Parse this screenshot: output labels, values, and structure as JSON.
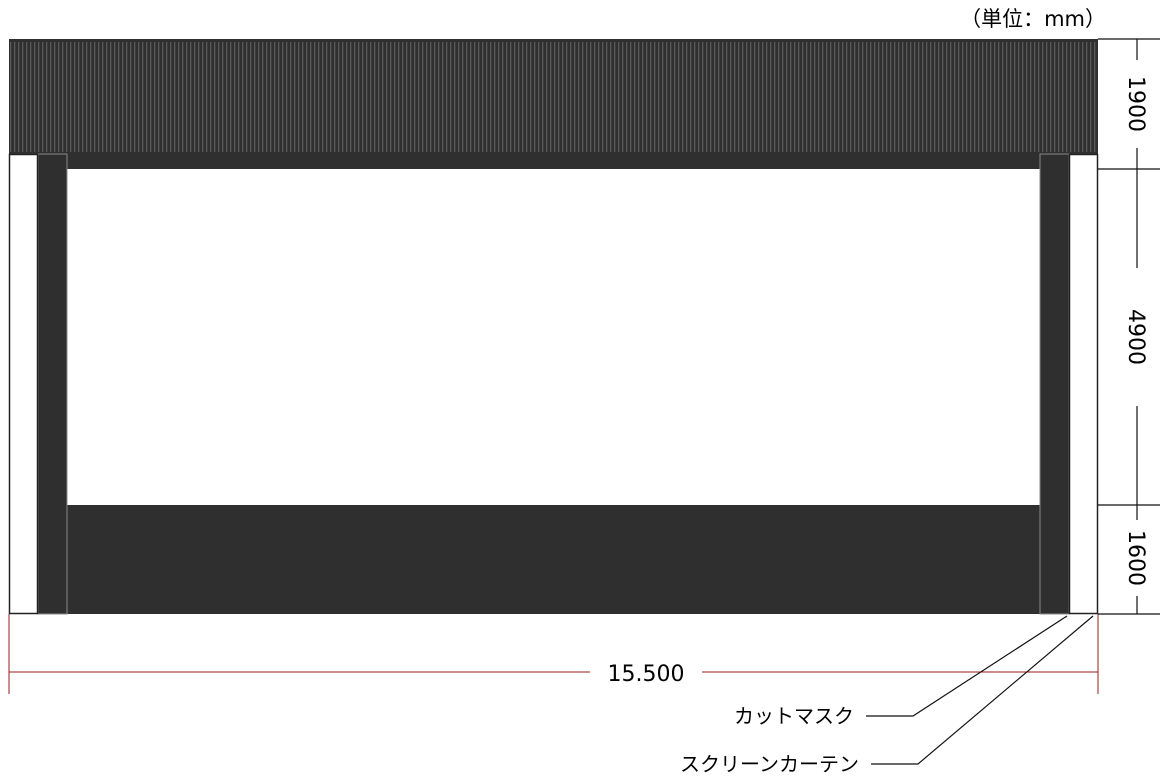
{
  "unit_label": "（単位：mm）",
  "dimensions": {
    "width": "15.500",
    "top_height": "1900",
    "middle_height": "4900",
    "bottom_height": "1600"
  },
  "callouts": {
    "cut_mask": "カットマスク",
    "screen_curtain": "スクリーンカーテン"
  },
  "colors": {
    "panel": "#2f2f2f",
    "curtain_stripe_light": "#5a5a5a",
    "dimension_line": "#9b1b1b",
    "screen": "#ffffff"
  }
}
